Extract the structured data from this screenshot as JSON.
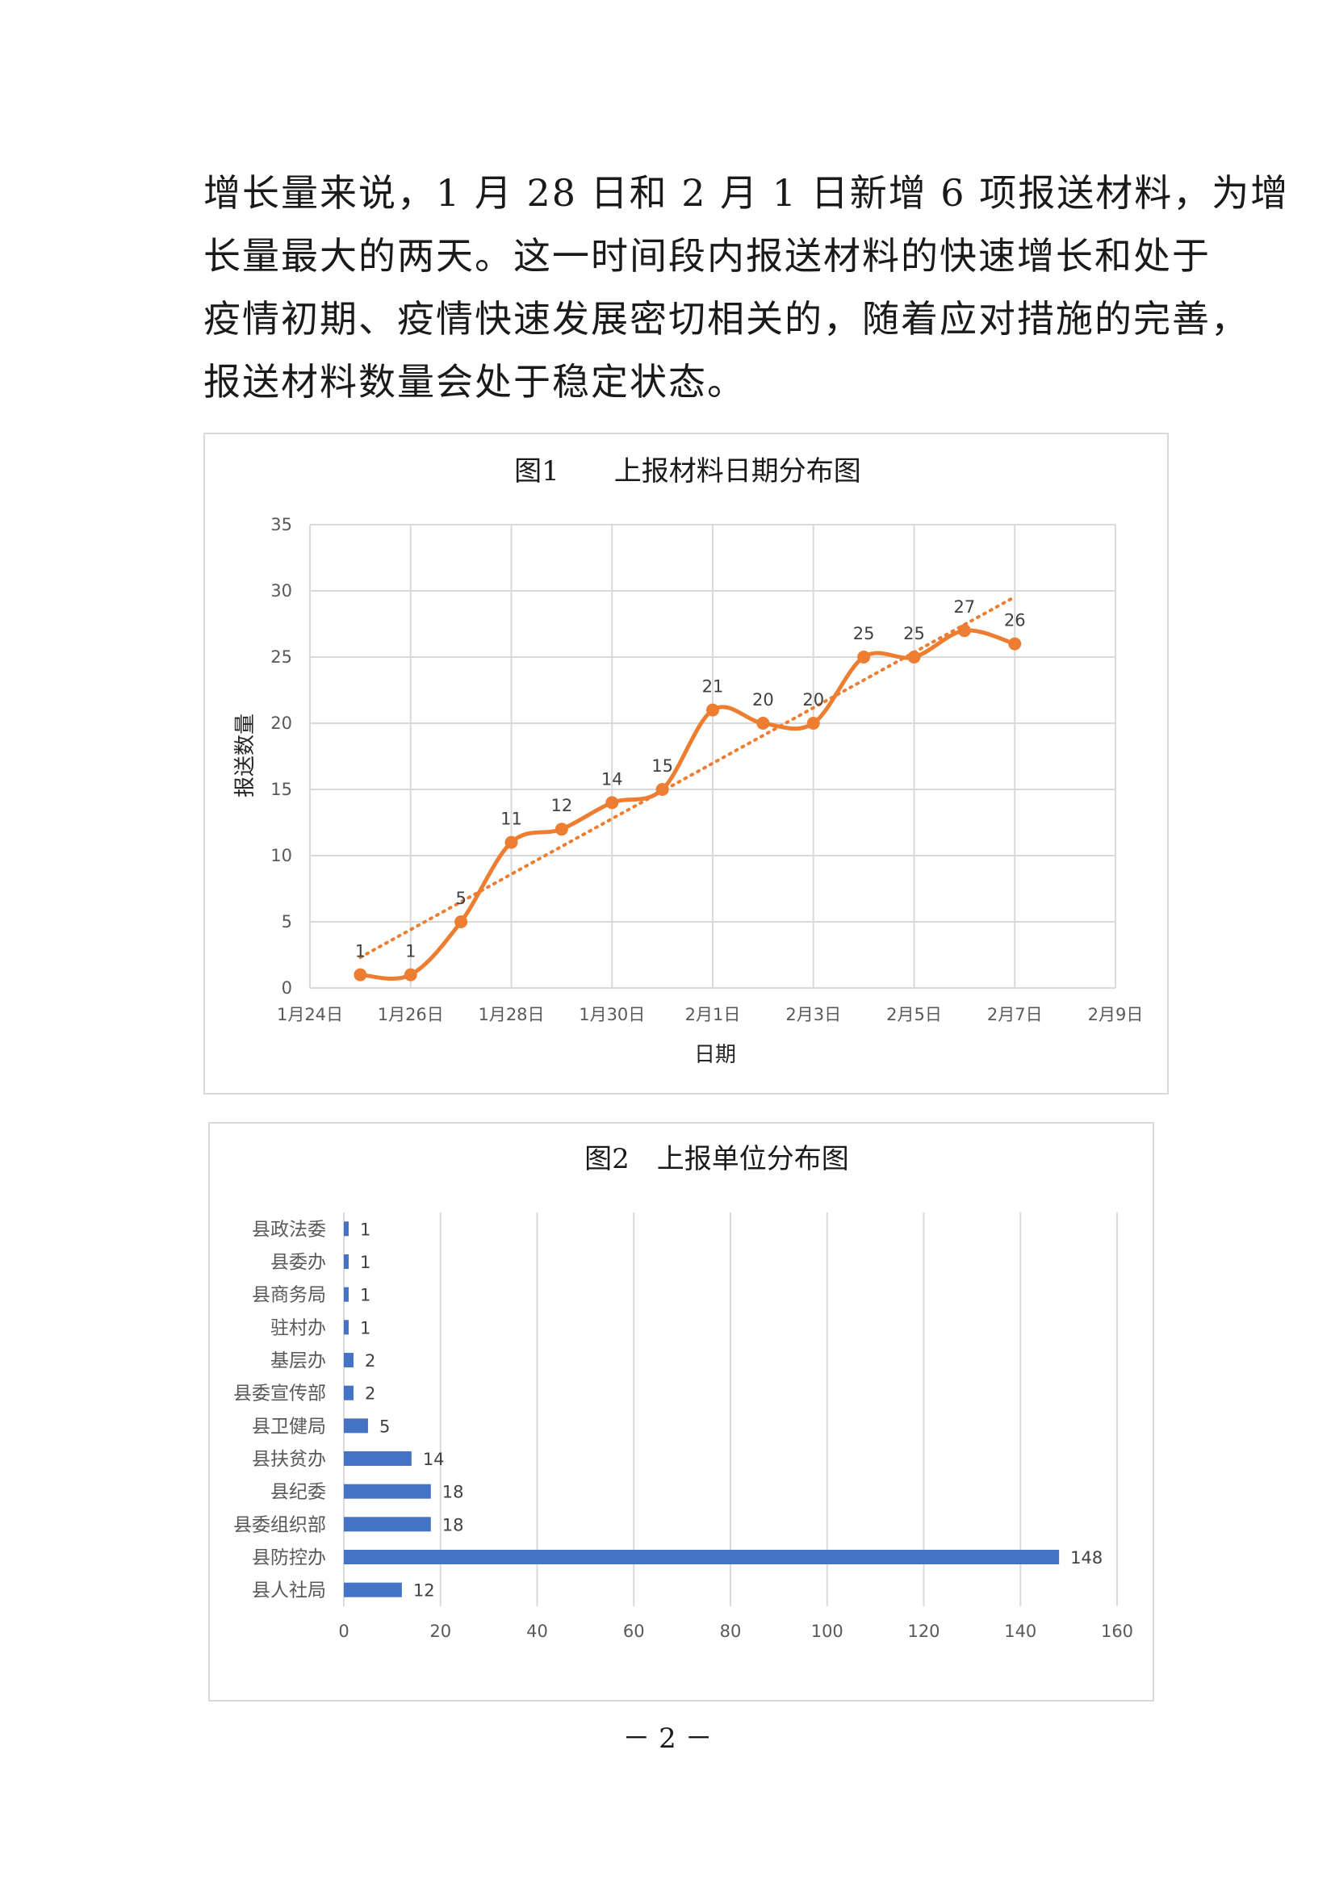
{
  "paragraph": {
    "lines": [
      "增长量来说，1 月 28 日和 2 月 1 日新增 6 项报送材料，为增",
      "长量最大的两天。这一时间段内报送材料的快速增长和处于",
      "疫情初期、疫情快速发展密切相关的，随着应对措施的完善，",
      "报送材料数量会处于稳定状态。"
    ]
  },
  "chart_data": [
    {
      "type": "line",
      "title": "图1　　上报材料日期分布图",
      "xlabel": "日期",
      "ylabel": "报送数量",
      "x_tick_labels": [
        "1月24日",
        "1月26日",
        "1月28日",
        "1月30日",
        "2月1日",
        "2月3日",
        "2月5日",
        "2月7日",
        "2月9日"
      ],
      "y_tick_labels": [
        "0",
        "5",
        "10",
        "15",
        "20",
        "25",
        "30",
        "35"
      ],
      "xlim": [
        "1月24日",
        "2月9日"
      ],
      "ylim": [
        0,
        35
      ],
      "grid": true,
      "trendline": "linear",
      "color": "#ed7d31",
      "series": [
        {
          "x": [
            "1月25日",
            "1月26日",
            "1月27日",
            "1月28日",
            "1月29日",
            "1月30日",
            "1月31日",
            "2月1日",
            "2月2日",
            "2月3日",
            "2月4日",
            "2月5日",
            "2月6日",
            "2月7日"
          ],
          "values": [
            1,
            1,
            5,
            11,
            12,
            14,
            15,
            21,
            20,
            20,
            25,
            25,
            27,
            26
          ],
          "labels": [
            "1",
            "1",
            "5",
            "11",
            "12",
            "14",
            "15",
            "21",
            "20",
            "20",
            "25",
            "25",
            "27",
            "26"
          ]
        }
      ]
    },
    {
      "type": "bar",
      "orientation": "horizontal",
      "title": "图2　上报单位分布图",
      "categories": [
        "县政法委",
        "县委办",
        "县商务局",
        "驻村办",
        "基层办",
        "县委宣传部",
        "县卫健局",
        "县扶贫办",
        "县纪委",
        "县委组织部",
        "县防控办",
        "县人社局"
      ],
      "values": [
        1,
        1,
        1,
        1,
        2,
        2,
        5,
        14,
        18,
        18,
        148,
        12
      ],
      "labels": [
        "1",
        "1",
        "1",
        "1",
        "2",
        "2",
        "5",
        "14",
        "18",
        "18",
        "148",
        "12"
      ],
      "x_tick_labels": [
        "0",
        "20",
        "40",
        "60",
        "80",
        "100",
        "120",
        "140",
        "160"
      ],
      "xlim": [
        0,
        160
      ],
      "grid": true,
      "color": "#4472c4"
    }
  ],
  "footer": {
    "page_number": "－ 2 －"
  }
}
